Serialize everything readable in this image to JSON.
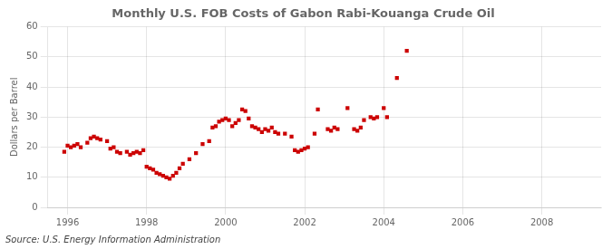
{
  "chart_data": {
    "type": "scatter",
    "title": "Monthly U.S. FOB Costs of Gabon Rabi-Kouanga Crude Oil",
    "ylabel": "Dollars per Barrel",
    "annotations": [
      "Source: U.S. Energy Information Administration"
    ],
    "x": [
      1995.917,
      1996.0,
      1996.083,
      1996.167,
      1996.25,
      1996.333,
      1996.5,
      1996.583,
      1996.667,
      1996.75,
      1996.833,
      1997.0,
      1997.083,
      1997.167,
      1997.25,
      1997.333,
      1997.5,
      1997.583,
      1997.667,
      1997.75,
      1997.833,
      1997.917,
      1998.0,
      1998.083,
      1998.167,
      1998.25,
      1998.333,
      1998.417,
      1998.5,
      1998.583,
      1998.667,
      1998.75,
      1998.833,
      1998.917,
      1999.083,
      1999.25,
      1999.417,
      1999.583,
      1999.667,
      1999.75,
      1999.833,
      1999.917,
      2000.0,
      2000.083,
      2000.167,
      2000.25,
      2000.333,
      2000.417,
      2000.5,
      2000.583,
      2000.667,
      2000.75,
      2000.833,
      2000.917,
      2001.0,
      2001.083,
      2001.167,
      2001.25,
      2001.333,
      2001.5,
      2001.667,
      2001.75,
      2001.833,
      2001.917,
      2002.0,
      2002.083,
      2002.25,
      2002.333,
      2002.583,
      2002.667,
      2002.75,
      2002.833,
      2003.083,
      2003.25,
      2003.333,
      2003.417,
      2003.5,
      2003.667,
      2003.75,
      2003.833,
      2004.0,
      2004.083,
      2004.333,
      2004.583
    ],
    "values": [
      18.5,
      20.5,
      20.0,
      20.5,
      21.0,
      20.0,
      21.5,
      23.0,
      23.5,
      23.0,
      22.5,
      22.0,
      19.5,
      20.0,
      18.5,
      18.0,
      18.5,
      17.5,
      18.0,
      18.5,
      18.0,
      19.0,
      13.5,
      13.0,
      12.5,
      11.5,
      11.0,
      10.5,
      10.0,
      9.5,
      10.5,
      11.5,
      13.0,
      14.5,
      16.0,
      18.0,
      21.0,
      22.0,
      26.5,
      27.0,
      28.5,
      29.0,
      29.5,
      29.0,
      27.0,
      28.0,
      29.0,
      32.5,
      32.0,
      29.5,
      27.0,
      26.5,
      26.0,
      25.0,
      26.0,
      25.5,
      26.5,
      25.0,
      24.5,
      24.5,
      23.5,
      19.0,
      18.5,
      19.0,
      19.5,
      20.0,
      24.5,
      32.5,
      26.0,
      25.5,
      26.5,
      26.0,
      33.0,
      26.0,
      25.5,
      26.5,
      29.0,
      30.0,
      29.5,
      30.0,
      33.0,
      30.0,
      43.0,
      52.0
    ],
    "color": "#cc0000",
    "marker": "square",
    "xlim": [
      1995.5,
      2009.5
    ],
    "ylim": [
      0,
      60
    ],
    "xticks": [
      1996,
      1998,
      2000,
      2002,
      2004,
      2006,
      2008
    ],
    "yticks": [
      0,
      10,
      20,
      30,
      40,
      50,
      60
    ],
    "grid": true
  }
}
